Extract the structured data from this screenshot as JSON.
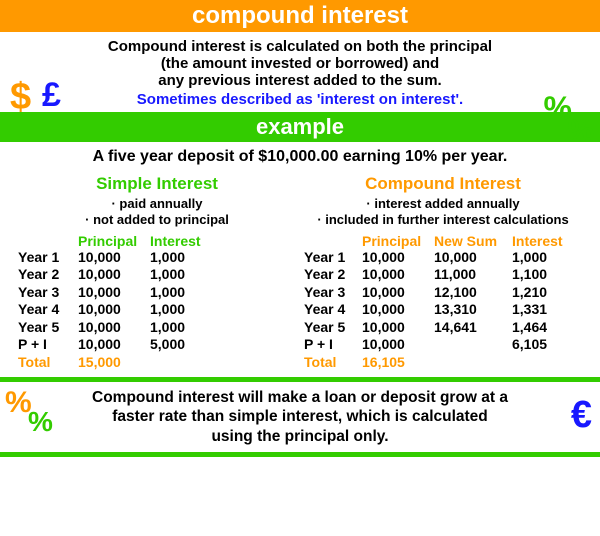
{
  "header": {
    "title": "compound interest"
  },
  "intro": {
    "line1": "Compound interest is calculated on both the principal",
    "line2": "(the amount invested or borrowed) and",
    "line3": "any previous interest added to the sum.",
    "blue": "Sometimes described as 'interest on interest'."
  },
  "example_banner": "example",
  "example_text": "A five year deposit of $10,000.00 earning 10% per year.",
  "simple": {
    "title": "Simple Interest",
    "bullets": [
      "· paid annually",
      "· not added to principal"
    ],
    "head": {
      "prin": "Principal",
      "int": "Interest"
    },
    "rows": [
      {
        "year": "Year 1",
        "prin": "10,000",
        "int": "1,000"
      },
      {
        "year": "Year 2",
        "prin": "10,000",
        "int": "1,000"
      },
      {
        "year": "Year 3",
        "prin": "10,000",
        "int": "1,000"
      },
      {
        "year": "Year 4",
        "prin": "10,000",
        "int": "1,000"
      },
      {
        "year": "Year 5",
        "prin": "10,000",
        "int": "1,000"
      },
      {
        "year": "P + I",
        "prin": "10,000",
        "int": "5,000"
      }
    ],
    "total": {
      "label": "Total",
      "value": "15,000"
    }
  },
  "compound": {
    "title": "Compound Interest",
    "bullets": [
      "· interest added annually",
      "· included in further interest calculations"
    ],
    "head": {
      "prin": "Principal",
      "sum": "New Sum",
      "int": "Interest"
    },
    "rows": [
      {
        "year": "Year 1",
        "prin": "10,000",
        "sum": "10,000",
        "int": "1,000"
      },
      {
        "year": "Year 2",
        "prin": "10,000",
        "sum": "11,000",
        "int": "1,100"
      },
      {
        "year": "Year 3",
        "prin": "10,000",
        "sum": "12,100",
        "int": "1,210"
      },
      {
        "year": "Year 4",
        "prin": "10,000",
        "sum": "13,310",
        "int": "1,331"
      },
      {
        "year": "Year 5",
        "prin": "10,000",
        "sum": "14,641",
        "int": "1,464"
      },
      {
        "year": "P + I",
        "prin": "10,000",
        "sum": "",
        "int": "6,105"
      }
    ],
    "total": {
      "label": "Total",
      "value": "16,105"
    }
  },
  "footer": {
    "line1": "Compound interest will make a loan or deposit grow at a",
    "line2": "faster rate than simple interest, which is calculated",
    "line3": "using the principal only."
  },
  "symbols": {
    "dollar": "$",
    "pound": "£",
    "percent": "%",
    "euro": "€"
  },
  "colors": {
    "orange": "#ff9900",
    "green": "#33cc00",
    "blue": "#1818ff",
    "black": "#000000",
    "white": "#ffffff"
  }
}
